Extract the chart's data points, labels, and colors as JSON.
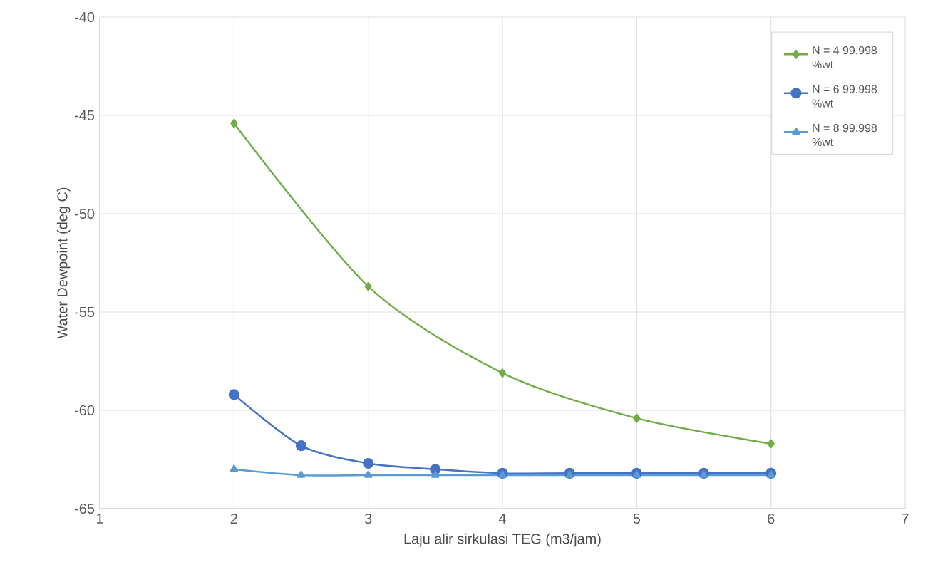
{
  "chart_data": {
    "type": "line",
    "xlabel": "Laju alir sirkulasi TEG (m3/jam)",
    "ylabel": "Water Dewpoint  (deg C)",
    "xlim": [
      1,
      7
    ],
    "xticks": [
      1,
      2,
      3,
      4,
      5,
      6,
      7
    ],
    "ylim": [
      -65,
      -40
    ],
    "yticks": [
      -65,
      -60,
      -55,
      -50,
      -45,
      -40
    ],
    "grid": true,
    "legend": "top right",
    "series": [
      {
        "name": "N = 4 99.998 %wt",
        "color": "#70ad47",
        "marker": "diamond",
        "x": [
          2,
          3,
          4,
          5,
          6
        ],
        "values": [
          -45.4,
          -53.7,
          -58.1,
          -60.4,
          -61.7
        ]
      },
      {
        "name": "N = 6 99.998 %wt",
        "color": "#4472c4",
        "marker": "circle",
        "x": [
          2,
          2.5,
          3,
          3.5,
          4,
          4.5,
          5,
          5.5,
          6
        ],
        "values": [
          -59.2,
          -61.8,
          -62.7,
          -63.0,
          -63.2,
          -63.2,
          -63.2,
          -63.2,
          -63.2
        ]
      },
      {
        "name": "N = 8 99.998 %wt",
        "color": "#5b9bd5",
        "marker": "triangle",
        "x": [
          2,
          2.5,
          3,
          3.5,
          4,
          4.5,
          5,
          5.5,
          6
        ],
        "values": [
          -63.0,
          -63.3,
          -63.3,
          -63.3,
          -63.3,
          -63.3,
          -63.3,
          -63.3,
          -63.3
        ]
      }
    ]
  }
}
